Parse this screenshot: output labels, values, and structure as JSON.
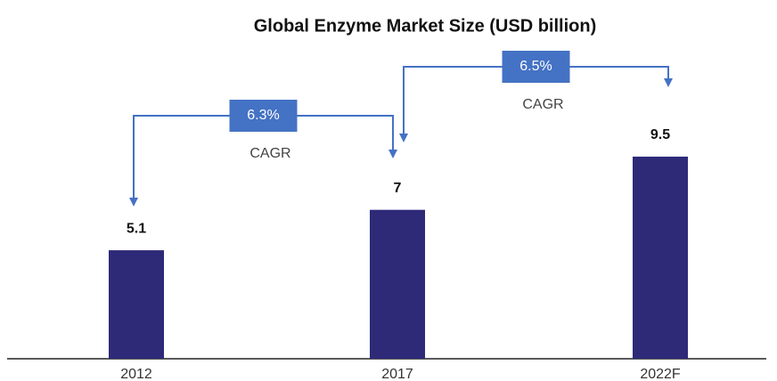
{
  "chart_data": {
    "type": "bar",
    "title": "Global Enzyme Market Size (USD billion)",
    "categories": [
      "2012",
      "2017",
      "2022F"
    ],
    "values": [
      5.1,
      7,
      9.5
    ],
    "color": "#2e2a78",
    "annotations": [
      {
        "value": 6.3,
        "label": "6.3%",
        "text": "CAGR"
      },
      {
        "value": 6.5,
        "label": "6.5%",
        "text": "CAGR"
      }
    ]
  }
}
